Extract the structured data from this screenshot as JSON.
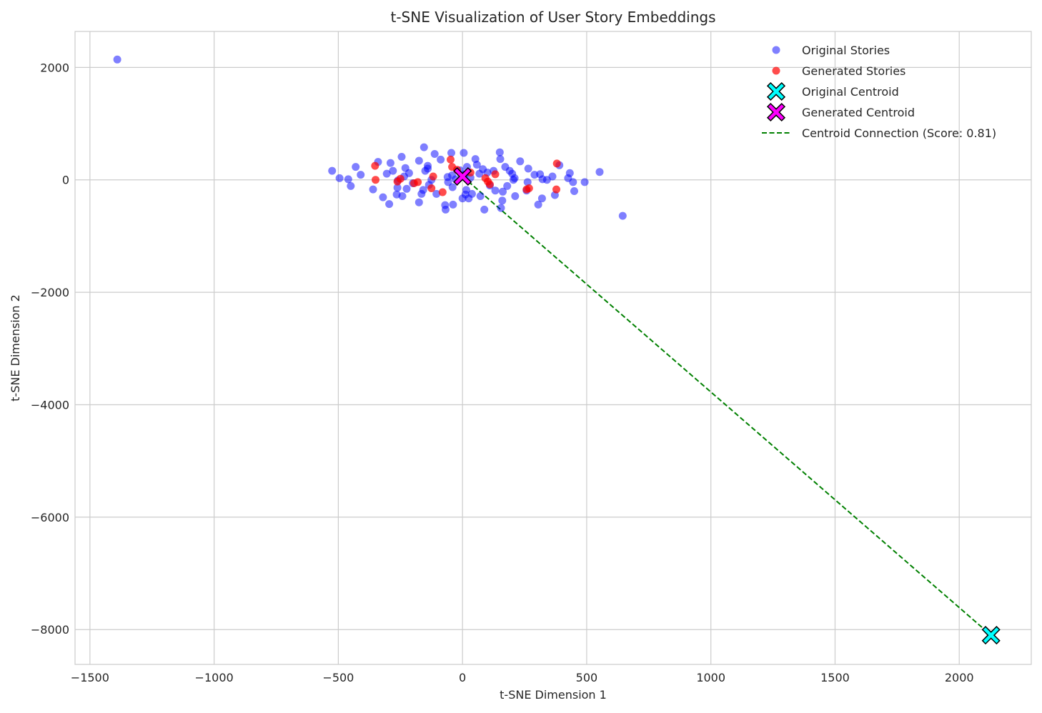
{
  "chart_data": {
    "type": "scatter",
    "title": "t-SNE Visualization of User Story Embeddings",
    "xlabel": "t-SNE Dimension 1",
    "ylabel": "t-SNE Dimension 2",
    "xlim": [
      -1560,
      2290
    ],
    "ylim": [
      -8620,
      2640
    ],
    "xticks": [
      -1500,
      -1000,
      -500,
      0,
      500,
      1000,
      1500,
      2000
    ],
    "yticks": [
      -8000,
      -6000,
      -4000,
      -2000,
      0,
      2000
    ],
    "xtick_labels": [
      "−1500",
      "−1000",
      "−500",
      "0",
      "500",
      "1000",
      "1500",
      "2000"
    ],
    "ytick_labels": [
      "−8000",
      "−6000",
      "−4000",
      "−2000",
      "0",
      "2000"
    ],
    "grid": true,
    "legend_position": "top-right",
    "series": [
      {
        "name": "Original Stories",
        "kind": "points",
        "color": "#0000ff",
        "points": [
          [
            -1390,
            2140
          ],
          [
            -525,
            160
          ],
          [
            -495,
            30
          ],
          [
            -460,
            10
          ],
          [
            -450,
            -110
          ],
          [
            -430,
            230
          ],
          [
            -410,
            90
          ],
          [
            -360,
            -170
          ],
          [
            -340,
            320
          ],
          [
            -320,
            -310
          ],
          [
            -305,
            110
          ],
          [
            -295,
            -430
          ],
          [
            -290,
            300
          ],
          [
            -280,
            160
          ],
          [
            -265,
            -260
          ],
          [
            -262,
            -140
          ],
          [
            -260,
            -10
          ],
          [
            -245,
            410
          ],
          [
            -242,
            -290
          ],
          [
            -235,
            60
          ],
          [
            -230,
            210
          ],
          [
            -225,
            -160
          ],
          [
            -215,
            120
          ],
          [
            -200,
            -60
          ],
          [
            -175,
            340
          ],
          [
            -175,
            -400
          ],
          [
            -165,
            -250
          ],
          [
            -158,
            -180
          ],
          [
            -155,
            580
          ],
          [
            -150,
            160
          ],
          [
            -140,
            250
          ],
          [
            -140,
            200
          ],
          [
            -135,
            -90
          ],
          [
            -125,
            0
          ],
          [
            -112,
            460
          ],
          [
            -105,
            -250
          ],
          [
            -88,
            360
          ],
          [
            -70,
            -450
          ],
          [
            -68,
            -530
          ],
          [
            -60,
            50
          ],
          [
            -58,
            -40
          ],
          [
            -45,
            480
          ],
          [
            -42,
            80
          ],
          [
            -40,
            -130
          ],
          [
            -38,
            -440
          ],
          [
            -28,
            10
          ],
          [
            -10,
            170
          ],
          [
            0,
            -330
          ],
          [
            5,
            480
          ],
          [
            10,
            100
          ],
          [
            12,
            -260
          ],
          [
            15,
            -180
          ],
          [
            18,
            230
          ],
          [
            25,
            -330
          ],
          [
            32,
            40
          ],
          [
            38,
            -250
          ],
          [
            52,
            370
          ],
          [
            58,
            270
          ],
          [
            68,
            110
          ],
          [
            72,
            -290
          ],
          [
            82,
            190
          ],
          [
            88,
            -530
          ],
          [
            100,
            130
          ],
          [
            110,
            -100
          ],
          [
            125,
            160
          ],
          [
            132,
            -190
          ],
          [
            150,
            490
          ],
          [
            152,
            370
          ],
          [
            155,
            -500
          ],
          [
            160,
            -370
          ],
          [
            162,
            -210
          ],
          [
            172,
            230
          ],
          [
            180,
            -110
          ],
          [
            190,
            160
          ],
          [
            200,
            110
          ],
          [
            205,
            0
          ],
          [
            210,
            30
          ],
          [
            212,
            -290
          ],
          [
            232,
            330
          ],
          [
            258,
            -190
          ],
          [
            262,
            -40
          ],
          [
            265,
            200
          ],
          [
            290,
            90
          ],
          [
            305,
            -440
          ],
          [
            312,
            100
          ],
          [
            320,
            -330
          ],
          [
            322,
            10
          ],
          [
            340,
            0
          ],
          [
            362,
            60
          ],
          [
            372,
            -270
          ],
          [
            390,
            260
          ],
          [
            425,
            30
          ],
          [
            432,
            120
          ],
          [
            445,
            -40
          ],
          [
            450,
            -200
          ],
          [
            492,
            -40
          ],
          [
            552,
            140
          ],
          [
            645,
            -640
          ]
        ]
      },
      {
        "name": "Generated Stories",
        "kind": "points",
        "color": "#ff0000",
        "points": [
          [
            -352,
            250
          ],
          [
            -350,
            0
          ],
          [
            -262,
            -30
          ],
          [
            -250,
            20
          ],
          [
            -195,
            -60
          ],
          [
            -180,
            -40
          ],
          [
            -125,
            -150
          ],
          [
            -118,
            60
          ],
          [
            -80,
            -220
          ],
          [
            -48,
            360
          ],
          [
            -42,
            230
          ],
          [
            -22,
            180
          ],
          [
            32,
            130
          ],
          [
            92,
            30
          ],
          [
            102,
            -30
          ],
          [
            110,
            -80
          ],
          [
            132,
            100
          ],
          [
            258,
            -170
          ],
          [
            268,
            -150
          ],
          [
            378,
            -170
          ],
          [
            380,
            290
          ]
        ]
      },
      {
        "name": "Original Centroid",
        "kind": "marker",
        "color": "#00ffff",
        "points": [
          [
            2128,
            -8100
          ]
        ]
      },
      {
        "name": "Generated Centroid",
        "kind": "marker",
        "color": "#ff00ff",
        "points": [
          [
            0,
            60
          ]
        ]
      },
      {
        "name": "Centroid Connection (Score: 0.81)",
        "kind": "line",
        "color": "#008000",
        "points": [
          [
            0,
            60
          ],
          [
            2128,
            -8100
          ]
        ]
      }
    ]
  }
}
